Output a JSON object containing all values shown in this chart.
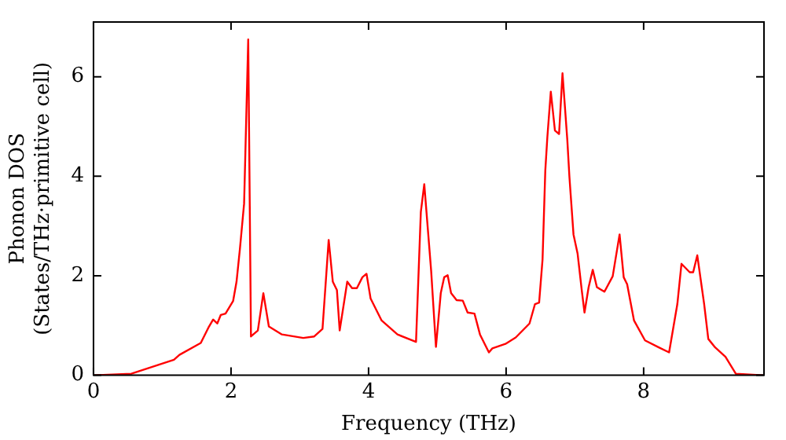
{
  "chart_data": {
    "type": "line",
    "xlabel": "Frequency (THz)",
    "ylabel": [
      "Phonon DOS",
      "(States/THz·primitive cell)"
    ],
    "xlim": [
      0,
      9.75
    ],
    "ylim": [
      0,
      7.1
    ],
    "xticks": [
      0,
      2,
      4,
      6,
      8
    ],
    "yticks": [
      0,
      2,
      4,
      6
    ],
    "grid": false,
    "legend": false,
    "marker": "none",
    "line_style": "solid",
    "series": [
      {
        "color": "#ff0000",
        "x": [
          0,
          0.55,
          1.17,
          1.25,
          1.56,
          1.68,
          1.74,
          1.8,
          1.85,
          1.92,
          2.03,
          2.08,
          2.13,
          2.19,
          2.25,
          2.29,
          2.39,
          2.47,
          2.55,
          2.74,
          3.05,
          3.21,
          3.33,
          3.42,
          3.48,
          3.54,
          3.58,
          3.69,
          3.76,
          3.83,
          3.91,
          3.97,
          4.03,
          4.19,
          4.42,
          4.69,
          4.76,
          4.81,
          4.91,
          4.98,
          5.05,
          5.1,
          5.15,
          5.2,
          5.28,
          5.37,
          5.44,
          5.54,
          5.62,
          5.75,
          5.8,
          5.99,
          6.14,
          6.34,
          6.42,
          6.48,
          6.53,
          6.57,
          6.6,
          6.65,
          6.71,
          6.77,
          6.82,
          6.89,
          6.92,
          6.98,
          7.04,
          7.1,
          7.14,
          7.2,
          7.26,
          7.32,
          7.43,
          7.55,
          7.65,
          7.71,
          7.76,
          7.86,
          8.02,
          8.22,
          8.37,
          8.49,
          8.55,
          8.67,
          8.72,
          8.78,
          8.88,
          8.94,
          9.04,
          9.19,
          9.34,
          9.74
        ],
        "values": [
          0,
          0.03,
          0.31,
          0.41,
          0.65,
          0.98,
          1.12,
          1.04,
          1.21,
          1.24,
          1.49,
          1.88,
          2.55,
          3.45,
          6.75,
          0.78,
          0.9,
          1.65,
          0.98,
          0.82,
          0.75,
          0.78,
          0.93,
          2.72,
          1.88,
          1.71,
          0.9,
          1.88,
          1.75,
          1.75,
          1.97,
          2.04,
          1.54,
          1.1,
          0.82,
          0.67,
          3.28,
          3.84,
          2.1,
          0.57,
          1.65,
          1.97,
          2.01,
          1.65,
          1.51,
          1.5,
          1.26,
          1.24,
          0.82,
          0.46,
          0.54,
          0.63,
          0.76,
          1.04,
          1.43,
          1.46,
          2.33,
          4.12,
          4.79,
          5.7,
          4.92,
          4.85,
          6.07,
          4.73,
          4.0,
          2.83,
          2.44,
          1.71,
          1.26,
          1.77,
          2.12,
          1.77,
          1.68,
          1.99,
          2.83,
          1.97,
          1.83,
          1.1,
          0.7,
          0.56,
          0.46,
          1.43,
          2.24,
          2.07,
          2.07,
          2.41,
          1.43,
          0.73,
          0.56,
          0.37,
          0.03,
          0
        ]
      }
    ]
  }
}
